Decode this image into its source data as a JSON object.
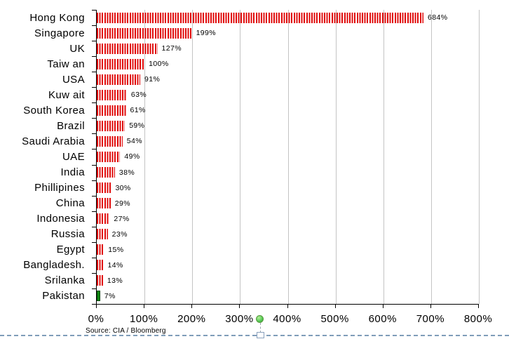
{
  "chart_data": {
    "type": "bar",
    "orientation": "horizontal",
    "categories": [
      "Hong Kong",
      "Singapore",
      "UK",
      "Taiw an",
      "USA",
      "Kuw ait",
      "South Korea",
      "Brazil",
      "Saudi Arabia",
      "UAE",
      "India",
      "Phillipines",
      "China",
      "Indonesia",
      "Russia",
      "Egypt",
      "Bangladesh.",
      "Srilanka",
      "Pakistan"
    ],
    "values": [
      684,
      199,
      127,
      100,
      91,
      63,
      61,
      59,
      54,
      49,
      38,
      30,
      29,
      27,
      23,
      15,
      14,
      13,
      7
    ],
    "value_labels": [
      "684%",
      "199%",
      "127%",
      "100%",
      "91%",
      "63%",
      "61%",
      "59%",
      "54%",
      "49%",
      "38%",
      "30%",
      "29%",
      "27%",
      "23%",
      "15%",
      "14%",
      "13%",
      "7%"
    ],
    "x_tick_labels": [
      "0%",
      "100%",
      "200%",
      "300%",
      "400%",
      "500%",
      "600%",
      "700%",
      "800%"
    ],
    "xlim": [
      0,
      800
    ],
    "grid": true,
    "legend": "none",
    "title": "",
    "xlabel": "",
    "ylabel": "",
    "source": "Source: CIA / Bloomberg",
    "bar_color": "#e00b0b",
    "highlight_color": "#0f8a10",
    "highlight_index": 18,
    "gridline_color": "#c4c4c4",
    "axis_color": "#000000"
  },
  "decorations": {
    "selection_border_color": "#7f9db9",
    "rotation_handle_icon": "green-rotation-circle",
    "resize_handle_icon": "top-center-sizing-square"
  }
}
